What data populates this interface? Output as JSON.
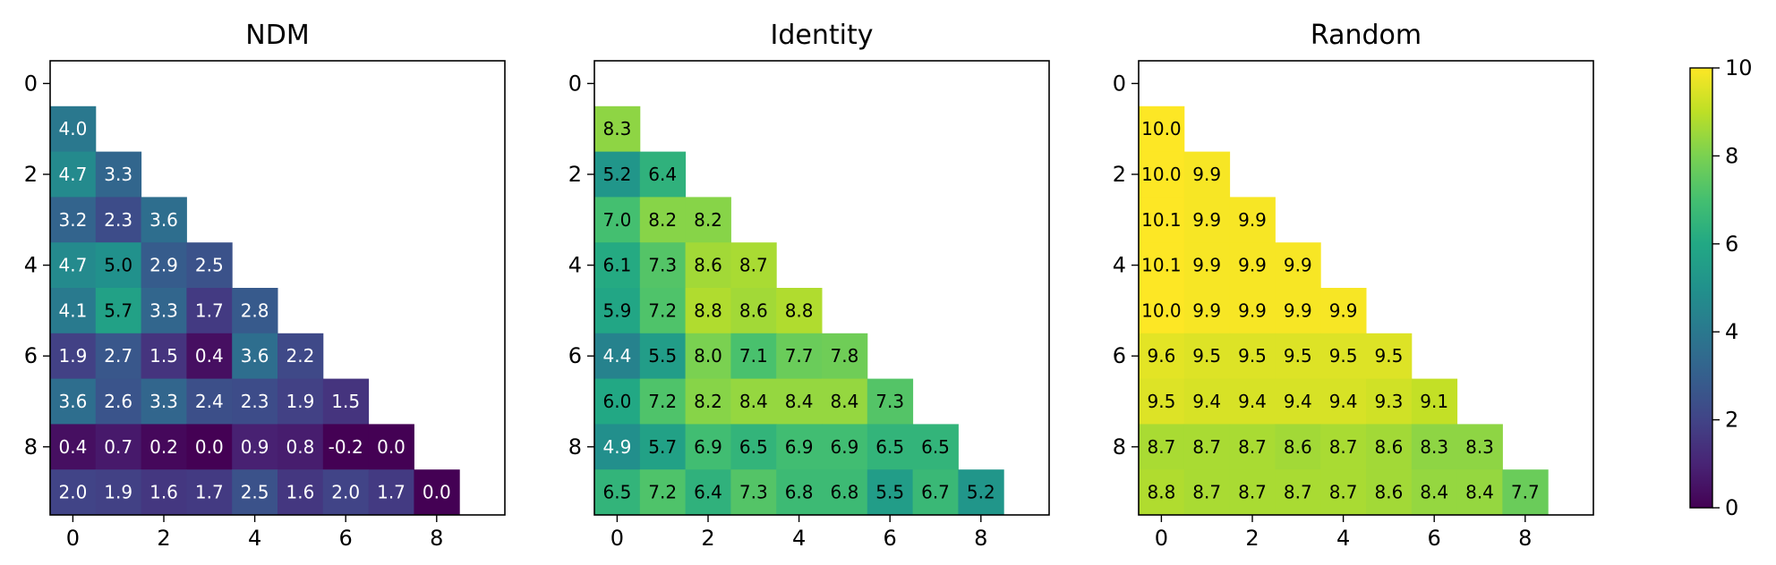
{
  "chart_data": [
    {
      "type": "heatmap",
      "title": "NDM",
      "rows": [
        1,
        2,
        3,
        4,
        5,
        6,
        7,
        8,
        9
      ],
      "cols": [
        0,
        1,
        2,
        3,
        4,
        5,
        6,
        7,
        8
      ],
      "values": [
        [
          4.0
        ],
        [
          4.7,
          3.3
        ],
        [
          3.2,
          2.3,
          3.6
        ],
        [
          4.7,
          5.0,
          2.9,
          2.5
        ],
        [
          4.1,
          5.7,
          3.3,
          1.7,
          2.8
        ],
        [
          1.9,
          2.7,
          1.5,
          0.4,
          3.6,
          2.2
        ],
        [
          3.6,
          2.6,
          3.3,
          2.4,
          2.3,
          1.9,
          1.5
        ],
        [
          0.4,
          0.7,
          0.2,
          0.0,
          0.9,
          0.8,
          -0.2,
          0.0
        ],
        [
          2.0,
          1.9,
          1.6,
          1.7,
          2.5,
          1.6,
          2.0,
          1.7,
          0.0
        ]
      ],
      "labels": [
        [
          "4.0"
        ],
        [
          "4.7",
          "3.3"
        ],
        [
          "3.2",
          "2.3",
          "3.6"
        ],
        [
          "4.7",
          "5.0",
          "2.9",
          "2.5"
        ],
        [
          "4.1",
          "5.7",
          "3.3",
          "1.7",
          "2.8"
        ],
        [
          "1.9",
          "2.7",
          "1.5",
          "0.4",
          "3.6",
          "2.2"
        ],
        [
          "3.6",
          "2.6",
          "3.3",
          "2.4",
          "2.3",
          "1.9",
          "1.5"
        ],
        [
          "0.4",
          "0.7",
          "0.2",
          "0.0",
          "0.9",
          "0.8",
          "-0.2",
          "0.0"
        ],
        [
          "2.0",
          "1.9",
          "1.6",
          "1.7",
          "2.5",
          "1.6",
          "2.0",
          "1.7",
          "0.0"
        ]
      ],
      "xlim": [
        -0.5,
        9.5
      ],
      "ylim": [
        -0.5,
        9.5
      ],
      "x_ticks": [
        "0",
        "2",
        "4",
        "6",
        "8"
      ],
      "y_ticks": [
        "0",
        "2",
        "4",
        "6",
        "8"
      ]
    },
    {
      "type": "heatmap",
      "title": "Identity",
      "rows": [
        1,
        2,
        3,
        4,
        5,
        6,
        7,
        8,
        9
      ],
      "cols": [
        0,
        1,
        2,
        3,
        4,
        5,
        6,
        7,
        8
      ],
      "values": [
        [
          8.3
        ],
        [
          5.2,
          6.4
        ],
        [
          7.0,
          8.2,
          8.2
        ],
        [
          6.1,
          7.3,
          8.6,
          8.7
        ],
        [
          5.9,
          7.2,
          8.8,
          8.6,
          8.8
        ],
        [
          4.4,
          5.5,
          8.0,
          7.1,
          7.7,
          7.8
        ],
        [
          6.0,
          7.2,
          8.2,
          8.4,
          8.4,
          8.4,
          7.3
        ],
        [
          4.9,
          5.7,
          6.9,
          6.5,
          6.9,
          6.9,
          6.5,
          6.5
        ],
        [
          6.5,
          7.2,
          6.4,
          7.3,
          6.8,
          6.8,
          5.5,
          6.7,
          5.2
        ]
      ],
      "labels": [
        [
          "8.3"
        ],
        [
          "5.2",
          "6.4"
        ],
        [
          "7.0",
          "8.2",
          "8.2"
        ],
        [
          "6.1",
          "7.3",
          "8.6",
          "8.7"
        ],
        [
          "5.9",
          "7.2",
          "8.8",
          "8.6",
          "8.8"
        ],
        [
          "4.4",
          "5.5",
          "8.0",
          "7.1",
          "7.7",
          "7.8"
        ],
        [
          "6.0",
          "7.2",
          "8.2",
          "8.4",
          "8.4",
          "8.4",
          "7.3"
        ],
        [
          "4.9",
          "5.7",
          "6.9",
          "6.5",
          "6.9",
          "6.9",
          "6.5",
          "6.5"
        ],
        [
          "6.5",
          "7.2",
          "6.4",
          "7.3",
          "6.8",
          "6.8",
          "5.5",
          "6.7",
          "5.2"
        ]
      ],
      "xlim": [
        -0.5,
        9.5
      ],
      "ylim": [
        -0.5,
        9.5
      ],
      "x_ticks": [
        "0",
        "2",
        "4",
        "6",
        "8"
      ],
      "y_ticks": [
        "0",
        "2",
        "4",
        "6",
        "8"
      ]
    },
    {
      "type": "heatmap",
      "title": "Random",
      "rows": [
        1,
        2,
        3,
        4,
        5,
        6,
        7,
        8,
        9
      ],
      "cols": [
        0,
        1,
        2,
        3,
        4,
        5,
        6,
        7,
        8
      ],
      "values": [
        [
          10.0
        ],
        [
          10.0,
          9.9
        ],
        [
          10.1,
          9.9,
          9.9
        ],
        [
          10.1,
          9.9,
          9.9,
          9.9
        ],
        [
          10.0,
          9.9,
          9.9,
          9.9,
          9.9
        ],
        [
          9.6,
          9.5,
          9.5,
          9.5,
          9.5,
          9.5
        ],
        [
          9.5,
          9.4,
          9.4,
          9.4,
          9.4,
          9.3,
          9.1
        ],
        [
          8.7,
          8.7,
          8.7,
          8.6,
          8.7,
          8.6,
          8.3,
          8.3
        ],
        [
          8.8,
          8.7,
          8.7,
          8.7,
          8.7,
          8.6,
          8.4,
          8.4,
          7.7
        ]
      ],
      "labels": [
        [
          "10.0"
        ],
        [
          "10.0",
          "9.9"
        ],
        [
          "10.1",
          "9.9",
          "9.9"
        ],
        [
          "10.1",
          "9.9",
          "9.9",
          "9.9"
        ],
        [
          "10.0",
          "9.9",
          "9.9",
          "9.9",
          "9.9"
        ],
        [
          "9.6",
          "9.5",
          "9.5",
          "9.5",
          "9.5",
          "9.5"
        ],
        [
          "9.5",
          "9.4",
          "9.4",
          "9.4",
          "9.4",
          "9.3",
          "9.1"
        ],
        [
          "8.7",
          "8.7",
          "8.7",
          "8.6",
          "8.7",
          "8.6",
          "8.3",
          "8.3"
        ],
        [
          "8.8",
          "8.7",
          "8.7",
          "8.7",
          "8.7",
          "8.6",
          "8.4",
          "8.4",
          "7.7"
        ]
      ],
      "xlim": [
        -0.5,
        9.5
      ],
      "ylim": [
        -0.5,
        9.5
      ],
      "x_ticks": [
        "0",
        "2",
        "4",
        "6",
        "8"
      ],
      "y_ticks": [
        "0",
        "2",
        "4",
        "6",
        "8"
      ]
    }
  ],
  "colorbar": {
    "colormap": "viridis",
    "min": 0,
    "max": 10,
    "ticks": [
      "0",
      "2",
      "4",
      "6",
      "8",
      "10"
    ]
  }
}
